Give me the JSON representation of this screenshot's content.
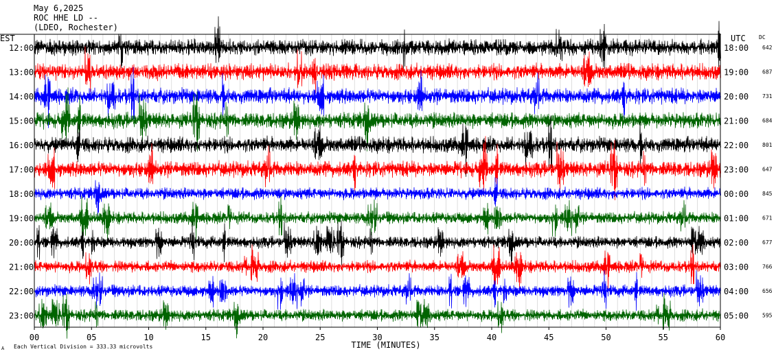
{
  "header": {
    "date": "May 6,2025",
    "station": "ROC HHE LD --",
    "network": "(LDEO, Rochester)"
  },
  "left_axis_label": "EST",
  "right_axis_label": "UTC",
  "dc_label": "DC",
  "x_axis_label": "TIME (MINUTES)",
  "footer_note": "Each Vertical Division = 333.33 microvolts",
  "chart_data": {
    "type": "line",
    "title": "May 6,2025 ROC HHE LD -- (LDEO, Rochester)",
    "xlabel": "TIME (MINUTES)",
    "xlim": [
      0,
      60
    ],
    "x_ticks": [
      "00",
      "05",
      "10",
      "15",
      "20",
      "25",
      "30",
      "35",
      "40",
      "45",
      "50",
      "55",
      "60"
    ],
    "trace_colors": [
      "#000000",
      "#ff0000",
      "#0000ff",
      "#006400"
    ],
    "rows": [
      {
        "est": "12:00",
        "utc": "18:00",
        "dc": "642",
        "color": "#000000"
      },
      {
        "est": "13:00",
        "utc": "19:00",
        "dc": "687",
        "color": "#ff0000"
      },
      {
        "est": "14:00",
        "utc": "20:00",
        "dc": "731",
        "color": "#0000ff"
      },
      {
        "est": "15:00",
        "utc": "21:00",
        "dc": "684",
        "color": "#006400"
      },
      {
        "est": "16:00",
        "utc": "22:00",
        "dc": "801",
        "color": "#000000"
      },
      {
        "est": "17:00",
        "utc": "23:00",
        "dc": "647",
        "color": "#ff0000"
      },
      {
        "est": "18:00",
        "utc": "00:00",
        "dc": "845",
        "color": "#0000ff"
      },
      {
        "est": "19:00",
        "utc": "01:00",
        "dc": "671",
        "color": "#006400"
      },
      {
        "est": "20:00",
        "utc": "02:00",
        "dc": "677",
        "color": "#000000"
      },
      {
        "est": "21:00",
        "utc": "03:00",
        "dc": "766",
        "color": "#ff0000"
      },
      {
        "est": "22:00",
        "utc": "04:00",
        "dc": "656",
        "color": "#0000ff"
      },
      {
        "est": "23:00",
        "utc": "05:00",
        "dc": "595",
        "color": "#006400"
      }
    ]
  }
}
